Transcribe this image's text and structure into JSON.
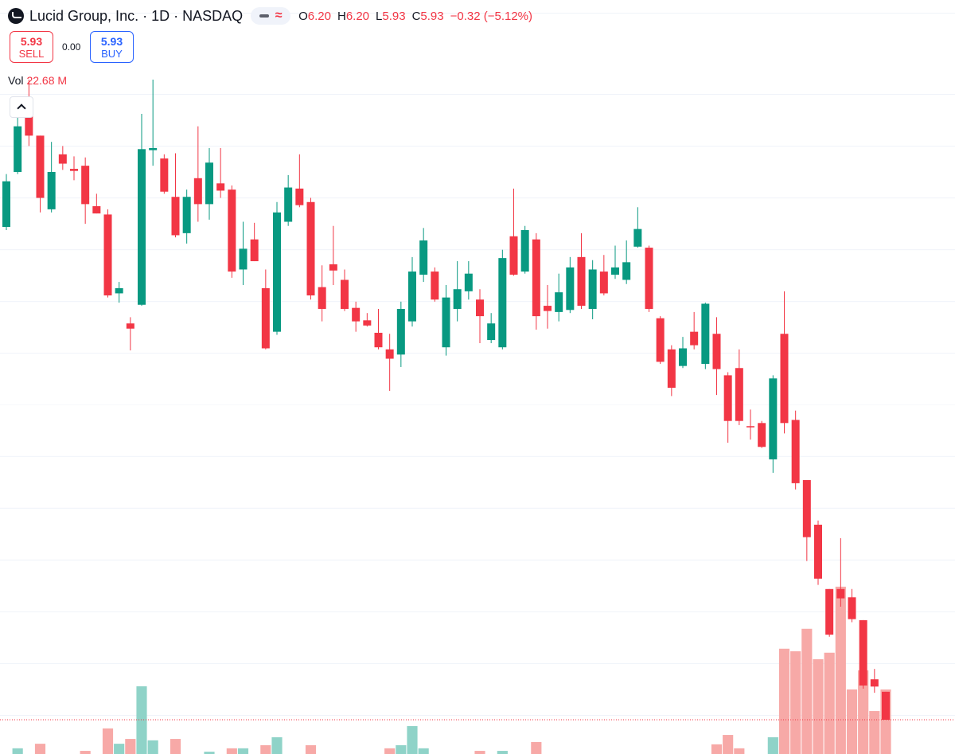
{
  "header": {
    "symbol": "Lucid Group, Inc. · 1D · NASDAQ",
    "ohlc": [
      {
        "label": "O",
        "value": "6.20"
      },
      {
        "label": "H",
        "value": "6.20"
      },
      {
        "label": "L",
        "value": "5.93"
      },
      {
        "label": "C",
        "value": "5.93"
      }
    ],
    "change": "−0.32 (−5.12%)"
  },
  "trade": {
    "sell_price": "5.93",
    "sell_label": "SELL",
    "spread": "0.00",
    "buy_price": "5.93",
    "buy_label": "BUY"
  },
  "volume": {
    "label": "Vol",
    "value": "22.68 M"
  },
  "chart_data": {
    "type": "candlestick",
    "open": [
      10.68,
      11.21,
      11.92,
      11.56,
      10.85,
      11.38,
      11.24,
      11.27,
      10.88,
      10.8,
      10.04,
      9.75,
      9.93,
      11.42,
      11.34,
      10.97,
      10.62,
      11.15,
      10.9,
      11.1,
      11.04,
      10.27,
      10.56,
      10.09,
      9.67,
      10.73,
      11.05,
      10.92,
      10.1,
      10.32,
      10.17,
      9.9,
      9.78,
      9.66,
      9.5,
      9.45,
      9.77,
      10.22,
      10.25,
      9.52,
      9.89,
      10.06,
      9.98,
      9.59,
      9.52,
      10.59,
      10.25,
      10.56,
      9.92,
      9.86,
      9.88,
      10.39,
      9.89,
      10.25,
      10.22,
      10.17,
      10.49,
      10.48,
      9.8,
      9.5,
      9.34,
      9.67,
      9.36,
      9.65,
      9.25,
      9.32,
      8.76,
      8.79,
      8.44,
      9.65,
      8.82,
      8.24,
      7.81,
      7.19,
      7.19,
      7.11,
      6.89,
      6.32,
      6.2
    ],
    "high": [
      11.19,
      11.77,
      12.1,
      11.56,
      11.5,
      11.46,
      11.36,
      11.35,
      11.0,
      10.85,
      10.15,
      9.81,
      11.77,
      12.1,
      11.38,
      11.39,
      11.04,
      11.65,
      11.44,
      11.44,
      11.08,
      10.73,
      10.72,
      10.27,
      10.92,
      11.18,
      11.38,
      10.96,
      10.31,
      10.69,
      10.27,
      9.96,
      9.85,
      9.89,
      9.65,
      9.96,
      10.39,
      10.67,
      10.29,
      10.12,
      10.35,
      10.35,
      10.08,
      9.85,
      10.46,
      11.05,
      10.69,
      10.62,
      10.12,
      10.23,
      10.39,
      10.62,
      10.36,
      10.41,
      10.5,
      10.55,
      10.87,
      10.5,
      9.82,
      9.54,
      9.62,
      9.86,
      9.95,
      9.81,
      9.28,
      9.5,
      8.92,
      8.81,
      9.25,
      10.06,
      8.91,
      8.24,
      7.85,
      7.19,
      7.68,
      7.19,
      6.89,
      6.42,
      6.2
    ],
    "low": [
      10.65,
      11.19,
      11.46,
      10.82,
      10.82,
      11.23,
      11.13,
      10.71,
      10.81,
      10.0,
      9.95,
      9.49,
      9.92,
      11.27,
      11.0,
      10.58,
      10.52,
      10.73,
      10.75,
      10.96,
      10.19,
      10.12,
      10.35,
      9.5,
      9.64,
      10.69,
      10.87,
      9.98,
      9.77,
      10.12,
      9.87,
      9.67,
      9.72,
      9.5,
      9.1,
      9.33,
      9.72,
      10.15,
      9.96,
      9.44,
      9.77,
      9.98,
      9.56,
      9.56,
      9.5,
      10.21,
      10.23,
      9.69,
      9.7,
      9.77,
      9.85,
      9.89,
      9.79,
      10.02,
      10.18,
      10.13,
      10.48,
      9.86,
      9.36,
      9.05,
      9.32,
      9.5,
      9.31,
      9.06,
      8.6,
      8.77,
      8.63,
      8.55,
      8.31,
      8.69,
      8.15,
      7.46,
      7.23,
      6.73,
      7.02,
      6.87,
      6.23,
      6.19,
      5.93
    ],
    "close": [
      11.12,
      11.65,
      11.56,
      10.96,
      11.21,
      11.29,
      11.22,
      10.9,
      10.81,
      10.02,
      10.09,
      9.7,
      11.43,
      11.44,
      11.02,
      10.6,
      10.97,
      10.9,
      11.3,
      11.03,
      10.25,
      10.47,
      10.35,
      9.51,
      10.82,
      11.06,
      10.89,
      10.02,
      9.89,
      10.26,
      9.89,
      9.77,
      9.73,
      9.52,
      9.41,
      9.89,
      10.25,
      10.55,
      9.98,
      10.0,
      10.08,
      10.23,
      9.82,
      9.75,
      10.38,
      10.22,
      10.65,
      9.82,
      9.87,
      10.05,
      10.29,
      9.92,
      10.27,
      10.04,
      10.29,
      10.34,
      10.66,
      9.89,
      9.38,
      9.13,
      9.51,
      9.54,
      9.94,
      9.31,
      8.81,
      8.81,
      8.75,
      8.56,
      9.22,
      8.79,
      8.21,
      7.69,
      7.29,
      6.75,
      7.1,
      6.9,
      6.26,
      6.25,
      5.93
    ],
    "volume": [
      null,
      2.0,
      null,
      3.6,
      null,
      null,
      null,
      1.1,
      null,
      9.0,
      3.6,
      5.3,
      23.8,
      4.8,
      null,
      5.3,
      null,
      null,
      0.8,
      null,
      2.0,
      2.0,
      null,
      3.1,
      5.9,
      null,
      null,
      3.1,
      null,
      null,
      null,
      null,
      null,
      null,
      2.0,
      3.1,
      9.8,
      2.0,
      null,
      null,
      null,
      null,
      1.1,
      null,
      1.1,
      null,
      null,
      4.2,
      null,
      null,
      null,
      null,
      null,
      null,
      null,
      null,
      null,
      null,
      null,
      null,
      null,
      null,
      null,
      3.4,
      6.7,
      2.0,
      null,
      null,
      5.9,
      37.0,
      36.1,
      44.0,
      33.3,
      35.6,
      58.8,
      22.7,
      29.4,
      15.1,
      22.68
    ],
    "ylim": [
      5.6,
      12.1
    ],
    "vlim": [
      0,
      237
    ],
    "up_color": "#089981",
    "down_color": "#f23645",
    "volume_up_color": "#8fd3c8",
    "volume_down_color": "#f7a9a7"
  }
}
